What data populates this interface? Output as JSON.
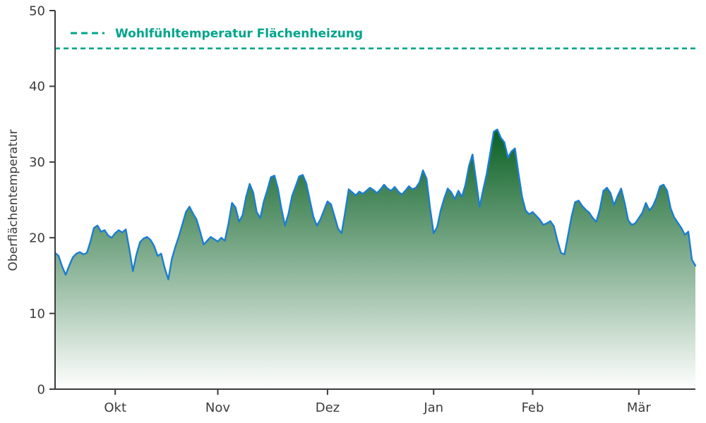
{
  "colors": {
    "axis": "#3c3c3c",
    "line": "#1c7dd0",
    "reference": "#00a48c",
    "fill_dark": "#045c1e",
    "fill_light": "#ffffff"
  },
  "chart_data": {
    "type": "area",
    "title": "",
    "xlabel": "",
    "ylabel": "Oberflächentemperatur",
    "ylim": [
      0,
      50
    ],
    "yticks": [
      0,
      10,
      20,
      30,
      40,
      50
    ],
    "xticks": [
      {
        "label": "Okt",
        "pos": 17
      },
      {
        "label": "Nov",
        "pos": 46
      },
      {
        "label": "Dez",
        "pos": 77
      },
      {
        "label": "Jan",
        "pos": 107
      },
      {
        "label": "Feb",
        "pos": 135
      },
      {
        "label": "Mär",
        "pos": 165
      }
    ],
    "grid": false,
    "legend_position": "upper left",
    "reference_line": {
      "value": 45,
      "label": "Wohlfühltemperatur Flächenheizung",
      "style": "dashed"
    },
    "series": [
      {
        "name": "Oberflächentemperatur",
        "values": [
          18,
          17.6,
          16.2,
          15.1,
          16.3,
          17.4,
          17.9,
          18.1,
          17.8,
          18,
          19.5,
          21.3,
          21.6,
          20.8,
          21,
          20.3,
          20,
          20.6,
          21,
          20.7,
          21.1,
          18.5,
          15.6,
          17.8,
          19.4,
          19.9,
          20.1,
          19.7,
          18.9,
          17.6,
          17.9,
          16,
          14.5,
          17.2,
          18.8,
          20.2,
          21.8,
          23.4,
          24.1,
          23.2,
          22.4,
          20.8,
          19.1,
          19.6,
          20.1,
          19.8,
          19.5,
          20,
          19.6,
          21.8,
          24.6,
          24,
          22.1,
          23,
          25.4,
          27.1,
          26,
          23.4,
          22.6,
          24.8,
          26.3,
          28,
          28.2,
          26.5,
          23.8,
          21.6,
          23.2,
          25.5,
          26.8,
          28.1,
          28.3,
          27.2,
          25,
          22.8,
          21.6,
          22.4,
          23.6,
          24.8,
          24.4,
          22.8,
          21.2,
          20.6,
          23.4,
          26.4,
          26,
          25.6,
          26.1,
          25.8,
          26.2,
          26.6,
          26.3,
          25.9,
          26.4,
          27,
          26.5,
          26.2,
          26.7,
          26.1,
          25.7,
          26.2,
          26.8,
          26.4,
          26.6,
          27.3,
          28.9,
          27.8,
          23.9,
          20.6,
          21.4,
          23.6,
          25.2,
          26.5,
          26,
          25.1,
          26.2,
          25.4,
          27,
          29.5,
          31,
          27.6,
          24.1,
          26.3,
          28.4,
          31.2,
          34,
          34.3,
          33.2,
          32.6,
          30.6,
          31.4,
          31.8,
          28.5,
          25.4,
          23.6,
          23.1,
          23.4,
          22.9,
          22.4,
          21.7,
          21.9,
          22.2,
          21.5,
          19.6,
          18,
          17.8,
          20.3,
          22.8,
          24.7,
          24.9,
          24.2,
          23.7,
          23.3,
          22.6,
          22.1,
          23.8,
          26.2,
          26.6,
          25.9,
          24.3,
          25.5,
          26.5,
          24.6,
          22.3,
          21.7,
          21.9,
          22.6,
          23.3,
          24.6,
          23.6,
          24.2,
          25.3,
          26.8,
          27,
          26.2,
          23.9,
          22.7,
          22,
          21.3,
          20.4,
          20.8,
          17.1,
          16.3
        ]
      }
    ]
  }
}
